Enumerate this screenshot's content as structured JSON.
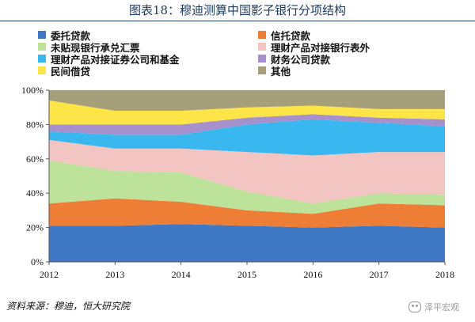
{
  "header": {
    "title": "图表18：穆迪测算中国影子银行分项结构"
  },
  "source": "资料来源：穆迪，恒大研究院",
  "watermark": "泽平宏观",
  "chart_data": {
    "type": "area",
    "stacked": true,
    "x": [
      "2012",
      "2013",
      "2014",
      "2015",
      "2016",
      "2017",
      "2018"
    ],
    "ylim": [
      0,
      100
    ],
    "yticks": [
      "0%",
      "20%",
      "40%",
      "60%",
      "80%",
      "100%"
    ],
    "grid": false,
    "legend_position": "top",
    "series": [
      {
        "name": "委托贷款",
        "color": "#3f78c4",
        "values": [
          21,
          21,
          22,
          21,
          20,
          21,
          20
        ]
      },
      {
        "name": "信托贷款",
        "color": "#ee7d36",
        "values": [
          13,
          16,
          13,
          9,
          8,
          13,
          13
        ]
      },
      {
        "name": "未贴现银行承兑汇票",
        "color": "#bde39a",
        "values": [
          25,
          16,
          17,
          11,
          6,
          6,
          6
        ]
      },
      {
        "name": "理财产品对接银行表外",
        "color": "#f2c4c2",
        "values": [
          12,
          13,
          14,
          23,
          28,
          24,
          25
        ]
      },
      {
        "name": "理财产品对接证券公司和基金",
        "color": "#39b8ef",
        "values": [
          5,
          8,
          8,
          16,
          21,
          17,
          15
        ]
      },
      {
        "name": "财务公司贷款",
        "color": "#a791cc",
        "values": [
          4,
          6,
          6,
          4,
          3,
          3,
          4
        ]
      },
      {
        "name": "民间借贷",
        "color": "#fde447",
        "values": [
          14,
          8,
          8,
          6,
          5,
          5,
          6
        ]
      },
      {
        "name": "其他",
        "color": "#a6a07a",
        "values": [
          6,
          12,
          12,
          10,
          9,
          11,
          11
        ]
      }
    ]
  }
}
